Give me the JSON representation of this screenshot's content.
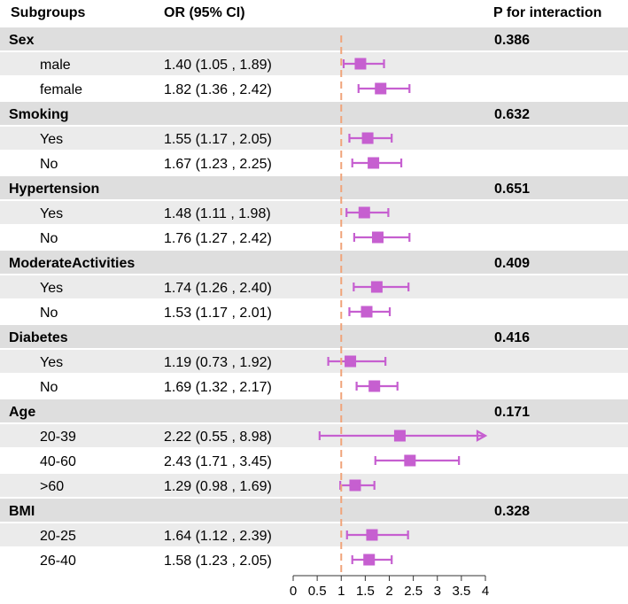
{
  "headers": {
    "subgroups": "Subgroups",
    "or": "OR (95% CI)",
    "p": "P for interaction"
  },
  "chart_data": {
    "type": "forest",
    "reference_line": 1,
    "xlim": [
      0,
      4
    ],
    "x_ticks": [
      "0",
      "0.5",
      "1",
      "1.5",
      "2",
      "2.5",
      "3",
      "3.5",
      "4"
    ],
    "colors": {
      "marker": "#c65fd0",
      "ref_line": "#f0a47a",
      "odd_row_bg": "#ebebeb",
      "group_bg": "#dedede"
    },
    "groups": [
      {
        "name": "Sex",
        "p": "0.386",
        "rows": [
          {
            "label": "male",
            "ci": "1.40 (1.05 , 1.89)",
            "or": 1.4,
            "lo": 1.05,
            "hi": 1.89
          },
          {
            "label": "female",
            "ci": "1.82 (1.36 , 2.42)",
            "or": 1.82,
            "lo": 1.36,
            "hi": 2.42
          }
        ]
      },
      {
        "name": "Smoking",
        "p": "0.632",
        "rows": [
          {
            "label": "Yes",
            "ci": "1.55 (1.17 , 2.05)",
            "or": 1.55,
            "lo": 1.17,
            "hi": 2.05
          },
          {
            "label": "No",
            "ci": "1.67 (1.23 , 2.25)",
            "or": 1.67,
            "lo": 1.23,
            "hi": 2.25
          }
        ]
      },
      {
        "name": "Hypertension",
        "p": "0.651",
        "rows": [
          {
            "label": "Yes",
            "ci": "1.48 (1.11 , 1.98)",
            "or": 1.48,
            "lo": 1.11,
            "hi": 1.98
          },
          {
            "label": "No",
            "ci": "1.76 (1.27 , 2.42)",
            "or": 1.76,
            "lo": 1.27,
            "hi": 2.42
          }
        ]
      },
      {
        "name": " ModerateActivities",
        "p": "0.409",
        "rows": [
          {
            "label": "Yes",
            "ci": "1.74 (1.26 , 2.40)",
            "or": 1.74,
            "lo": 1.26,
            "hi": 2.4
          },
          {
            "label": "No",
            "ci": "1.53 (1.17 , 2.01)",
            "or": 1.53,
            "lo": 1.17,
            "hi": 2.01
          }
        ]
      },
      {
        "name": "Diabetes",
        "p": "0.416",
        "rows": [
          {
            "label": "Yes",
            "ci": "1.19 (0.73 , 1.92)",
            "or": 1.19,
            "lo": 0.73,
            "hi": 1.92
          },
          {
            "label": "No",
            "ci": "1.69 (1.32 , 2.17)",
            "or": 1.69,
            "lo": 1.32,
            "hi": 2.17
          }
        ]
      },
      {
        "name": "Age",
        "p": "0.171",
        "rows": [
          {
            "label": "20-39",
            "ci": "2.22 (0.55 , 8.98)",
            "or": 2.22,
            "lo": 0.55,
            "hi": 8.98
          },
          {
            "label": "40-60",
            "ci": "2.43 (1.71 , 3.45)",
            "or": 2.43,
            "lo": 1.71,
            "hi": 3.45
          },
          {
            "label": ">60",
            "ci": "1.29 (0.98 , 1.69)",
            "or": 1.29,
            "lo": 0.98,
            "hi": 1.69
          }
        ]
      },
      {
        "name": "BMI",
        "p": "0.328",
        "rows": [
          {
            "label": "20-25",
            "ci": "1.64 (1.12 , 2.39)",
            "or": 1.64,
            "lo": 1.12,
            "hi": 2.39
          },
          {
            "label": "26-40",
            "ci": "1.58 (1.23 , 2.05)",
            "or": 1.58,
            "lo": 1.23,
            "hi": 2.05
          }
        ]
      }
    ]
  }
}
